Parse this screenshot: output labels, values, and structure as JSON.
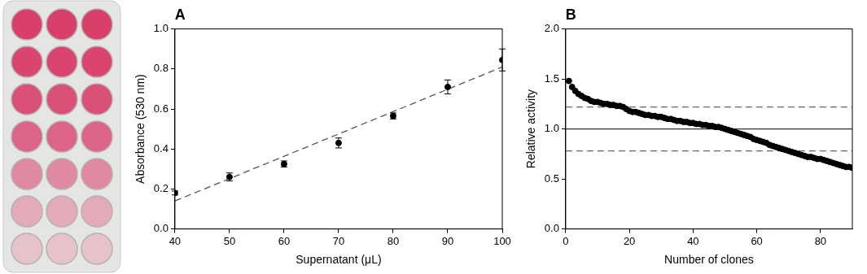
{
  "chart_data": [
    {
      "type": "scatter",
      "title": "A",
      "x_label": "Supernatant (μL)",
      "y_label": "Absorbance (530 nm)",
      "xlim": [
        40,
        100
      ],
      "xticks": [
        40,
        50,
        60,
        70,
        80,
        90,
        100
      ],
      "ylim": [
        0,
        1.0
      ],
      "yticks": [
        {
          "value": 0,
          "label": "0.0"
        },
        0.2,
        0.4,
        0.6,
        0.8,
        {
          "value": 1.0,
          "label": "1.0"
        }
      ],
      "grid": false,
      "series": [
        {
          "x": [
            40,
            50,
            60,
            70,
            80,
            90,
            100
          ],
          "values": [
            0.18,
            0.26,
            0.325,
            0.43,
            0.565,
            0.71,
            0.845
          ],
          "errors": [
            0.01,
            0.02,
            0.015,
            0.025,
            0.015,
            0.035,
            0.055
          ],
          "marker": "circle",
          "color": "#000000"
        },
        {
          "type": "line",
          "x": [
            40,
            100
          ],
          "values": [
            0.14,
            0.81
          ],
          "line_style": "dashed",
          "color": "#555555"
        }
      ]
    },
    {
      "type": "scatter",
      "title": "B",
      "x_label": "Number of clones",
      "y_label": "Relative activity",
      "xlim": [
        0,
        90
      ],
      "xticks": [
        0,
        20,
        40,
        60,
        80
      ],
      "ylim": [
        0,
        2.0
      ],
      "yticks": [
        {
          "value": 0,
          "label": "0.0"
        },
        0.5,
        {
          "value": 1.0,
          "label": "1.0"
        },
        1.5,
        {
          "value": 2.0,
          "label": "2.0"
        }
      ],
      "grid": false,
      "series": [
        {
          "x": [
            1,
            2,
            3,
            4,
            5,
            6,
            7,
            8,
            9,
            10,
            11,
            12,
            13,
            14,
            15,
            16,
            17,
            18,
            19,
            20,
            21,
            22,
            23,
            24,
            25,
            26,
            27,
            28,
            29,
            30,
            31,
            32,
            33,
            34,
            35,
            36,
            37,
            38,
            39,
            40,
            41,
            42,
            43,
            44,
            45,
            46,
            47,
            48,
            49,
            50,
            51,
            52,
            53,
            54,
            55,
            56,
            57,
            58,
            59,
            60,
            61,
            62,
            63,
            64,
            65,
            66,
            67,
            68,
            69,
            70,
            71,
            72,
            73,
            74,
            75,
            76,
            77,
            78,
            79,
            80,
            81,
            82,
            83,
            84,
            85,
            86,
            87,
            88,
            89,
            90
          ],
          "values": [
            1.48,
            1.42,
            1.38,
            1.35,
            1.33,
            1.31,
            1.3,
            1.28,
            1.27,
            1.27,
            1.26,
            1.25,
            1.25,
            1.24,
            1.24,
            1.23,
            1.23,
            1.22,
            1.2,
            1.18,
            1.17,
            1.17,
            1.16,
            1.15,
            1.14,
            1.14,
            1.13,
            1.13,
            1.12,
            1.12,
            1.11,
            1.1,
            1.1,
            1.09,
            1.08,
            1.08,
            1.07,
            1.07,
            1.06,
            1.06,
            1.05,
            1.05,
            1.04,
            1.04,
            1.03,
            1.03,
            1.02,
            1.02,
            1.01,
            1.0,
            0.99,
            0.98,
            0.97,
            0.96,
            0.95,
            0.94,
            0.93,
            0.92,
            0.9,
            0.89,
            0.88,
            0.87,
            0.86,
            0.84,
            0.83,
            0.82,
            0.81,
            0.8,
            0.79,
            0.78,
            0.77,
            0.76,
            0.75,
            0.74,
            0.73,
            0.72,
            0.72,
            0.71,
            0.7,
            0.7,
            0.69,
            0.68,
            0.67,
            0.66,
            0.65,
            0.64,
            0.63,
            0.62,
            0.62,
            0.61
          ],
          "marker": "circle",
          "color": "#000000"
        },
        {
          "type": "line",
          "x": [
            0,
            90
          ],
          "values": [
            1.0,
            1.0
          ],
          "line_style": "solid",
          "color": "#333333"
        },
        {
          "type": "line",
          "x": [
            0,
            90
          ],
          "values": [
            1.22,
            1.22
          ],
          "line_style": "dashed",
          "color": "#666666"
        },
        {
          "type": "line",
          "x": [
            0,
            90
          ],
          "values": [
            0.78,
            0.78
          ],
          "line_style": "dashed",
          "color": "#666666"
        }
      ]
    }
  ]
}
